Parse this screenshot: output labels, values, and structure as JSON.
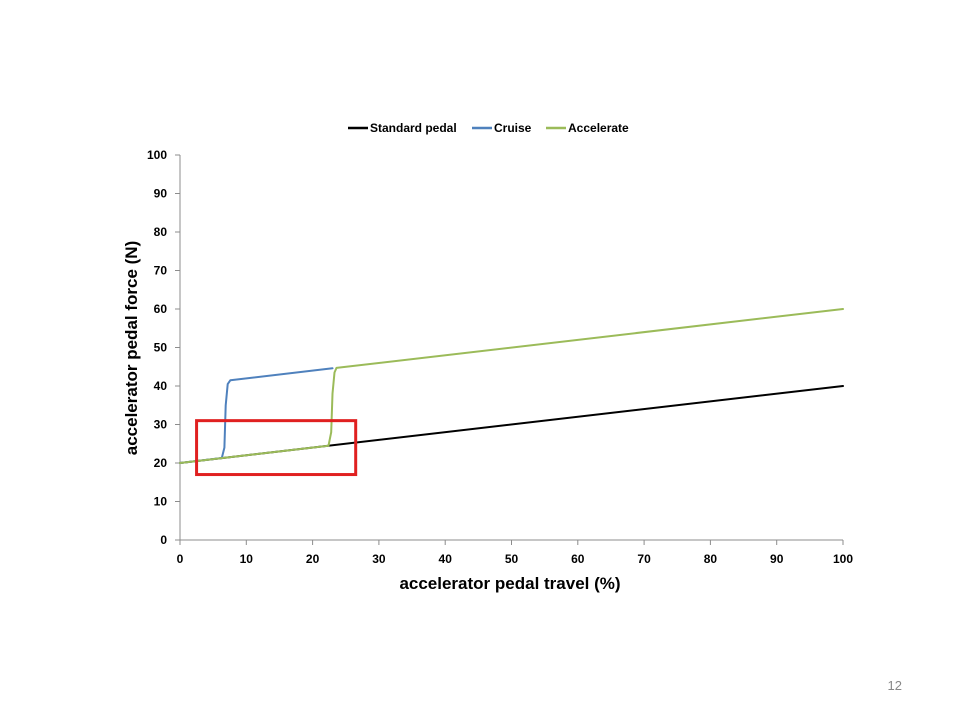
{
  "slide": {
    "number": "12"
  },
  "chart_data": {
    "type": "line",
    "xlabel": "accelerator pedal travel (%)",
    "ylabel": "accelerator pedal force (N)",
    "xlim": [
      0,
      100
    ],
    "ylim": [
      0,
      100
    ],
    "xticks": [
      0,
      10,
      20,
      30,
      40,
      50,
      60,
      70,
      80,
      90,
      100
    ],
    "yticks": [
      0,
      10,
      20,
      30,
      40,
      50,
      60,
      70,
      80,
      90,
      100
    ],
    "grid": false,
    "legend_position": "top",
    "series": [
      {
        "name": "Standard pedal",
        "color": "#000000",
        "x": [
          0,
          100
        ],
        "y": [
          20,
          40
        ]
      },
      {
        "name": "Cruise",
        "color": "#4f81bd",
        "x": [
          0,
          6.3,
          6.7,
          6.9,
          7.2,
          7.6,
          23
        ],
        "y": [
          20,
          21.3,
          24,
          35,
          40.5,
          41.5,
          44.6
        ]
      },
      {
        "name": "Accelerate",
        "color": "#9bbb59",
        "x": [
          0,
          22.4,
          22.8,
          23.0,
          23.3,
          23.6,
          100
        ],
        "y": [
          20,
          24.5,
          28,
          38,
          43.5,
          44.7,
          60
        ]
      }
    ],
    "annotations": [
      {
        "type": "highlight-box",
        "color": "#e02020",
        "x_range": [
          2.5,
          26.5
        ],
        "y_range": [
          17,
          31
        ]
      }
    ]
  }
}
